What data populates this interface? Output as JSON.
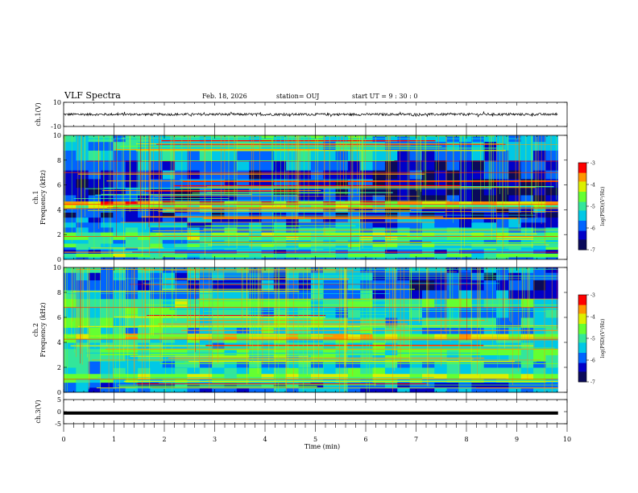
{
  "header": {
    "title": "VLF Spectra",
    "date": "Feb. 18, 2026",
    "station": "station= OUJ",
    "start": "start UT =  9 : 30 : 0"
  },
  "colors": {
    "colormap": [
      "#0a0a5a",
      "#0000c8",
      "#0064ff",
      "#00c8e6",
      "#32e69b",
      "#64ff32",
      "#dcf000",
      "#ff9600",
      "#ff0000",
      "#ffffff"
    ]
  },
  "chart_data": [
    {
      "type": "line",
      "panel": "ch1-waveform",
      "ylabel": "ch.1(V)",
      "ylim": [
        -10,
        10
      ],
      "yticks": [
        "10",
        "-10"
      ],
      "xlim": [
        0,
        10
      ],
      "baseline": 0,
      "amplitude_band": [
        -1,
        1
      ]
    },
    {
      "type": "heatmap",
      "panel": "ch1-spectrogram",
      "ylabel": "ch.1 Frequency (kHz)",
      "ylim": [
        0,
        10
      ],
      "yticks": [
        "0",
        "2",
        "4",
        "6",
        "8",
        "10"
      ],
      "xlim": [
        0,
        10
      ],
      "colorbar": {
        "label": "log(PSD)(V²/Hz)",
        "range": [
          -7,
          -3
        ],
        "ticks": [
          "-3",
          "-4",
          "-5",
          "-6",
          "-7"
        ]
      },
      "bands": [
        {
          "f": 0.0,
          "level": 0.35
        },
        {
          "f": 0.2,
          "level": 0.55
        },
        {
          "f": 0.5,
          "level": 0.3
        },
        {
          "f": 0.8,
          "level": 0.45
        },
        {
          "f": 1.0,
          "level": 0.5
        },
        {
          "f": 1.3,
          "level": 0.4
        },
        {
          "f": 1.6,
          "level": 0.6
        },
        {
          "f": 1.9,
          "level": 0.55
        },
        {
          "f": 2.2,
          "level": 0.35
        },
        {
          "f": 2.6,
          "level": 0.3
        },
        {
          "f": 3.0,
          "level": 0.25
        },
        {
          "f": 3.4,
          "level": 0.2
        },
        {
          "f": 3.8,
          "level": 0.3
        },
        {
          "f": 4.1,
          "level": 0.6
        },
        {
          "f": 4.4,
          "level": 0.85
        },
        {
          "f": 4.7,
          "level": 0.2
        },
        {
          "f": 5.2,
          "level": 0.15
        },
        {
          "f": 5.8,
          "level": 0.18
        },
        {
          "f": 6.5,
          "level": 0.22
        },
        {
          "f": 7.2,
          "level": 0.28
        },
        {
          "f": 8.0,
          "level": 0.35
        },
        {
          "f": 8.8,
          "level": 0.4
        },
        {
          "f": 9.5,
          "level": 0.45
        }
      ]
    },
    {
      "type": "heatmap",
      "panel": "ch2-spectrogram",
      "ylabel": "ch.2 Frequency (kHz)",
      "ylim": [
        0,
        10
      ],
      "yticks": [
        "0",
        "2",
        "4",
        "6",
        "8",
        "10"
      ],
      "xlim": [
        0,
        10
      ],
      "colorbar": {
        "label": "log(PSD)(V²/Hz)",
        "range": [
          -7,
          -3
        ],
        "ticks": [
          "-3",
          "-4",
          "-5",
          "-6",
          "-7"
        ]
      },
      "bands": [
        {
          "f": 0.0,
          "level": 0.3
        },
        {
          "f": 0.4,
          "level": 0.25
        },
        {
          "f": 0.8,
          "level": 0.5
        },
        {
          "f": 1.1,
          "level": 0.65
        },
        {
          "f": 1.5,
          "level": 0.45
        },
        {
          "f": 2.0,
          "level": 0.4
        },
        {
          "f": 2.5,
          "level": 0.5
        },
        {
          "f": 3.0,
          "level": 0.55
        },
        {
          "f": 3.5,
          "level": 0.45
        },
        {
          "f": 4.0,
          "level": 0.5
        },
        {
          "f": 4.3,
          "level": 0.7
        },
        {
          "f": 4.7,
          "level": 0.45
        },
        {
          "f": 5.2,
          "level": 0.5
        },
        {
          "f": 6.0,
          "level": 0.45
        },
        {
          "f": 6.8,
          "level": 0.55
        },
        {
          "f": 7.5,
          "level": 0.35
        },
        {
          "f": 8.2,
          "level": 0.28
        },
        {
          "f": 9.0,
          "level": 0.3
        },
        {
          "f": 9.6,
          "level": 0.4
        }
      ]
    },
    {
      "type": "line",
      "panel": "ch3-waveform",
      "ylabel": "ch.3(V)",
      "ylim": [
        -5,
        5
      ],
      "yticks": [
        "5",
        "0",
        "-5"
      ],
      "xlim": [
        0,
        10
      ],
      "baseline": -0.6
    }
  ],
  "xaxis": {
    "label": "Time (min)",
    "ticks": [
      "0",
      "1",
      "2",
      "3",
      "4",
      "5",
      "6",
      "7",
      "8",
      "9",
      "10"
    ],
    "data_end": 9.82
  }
}
